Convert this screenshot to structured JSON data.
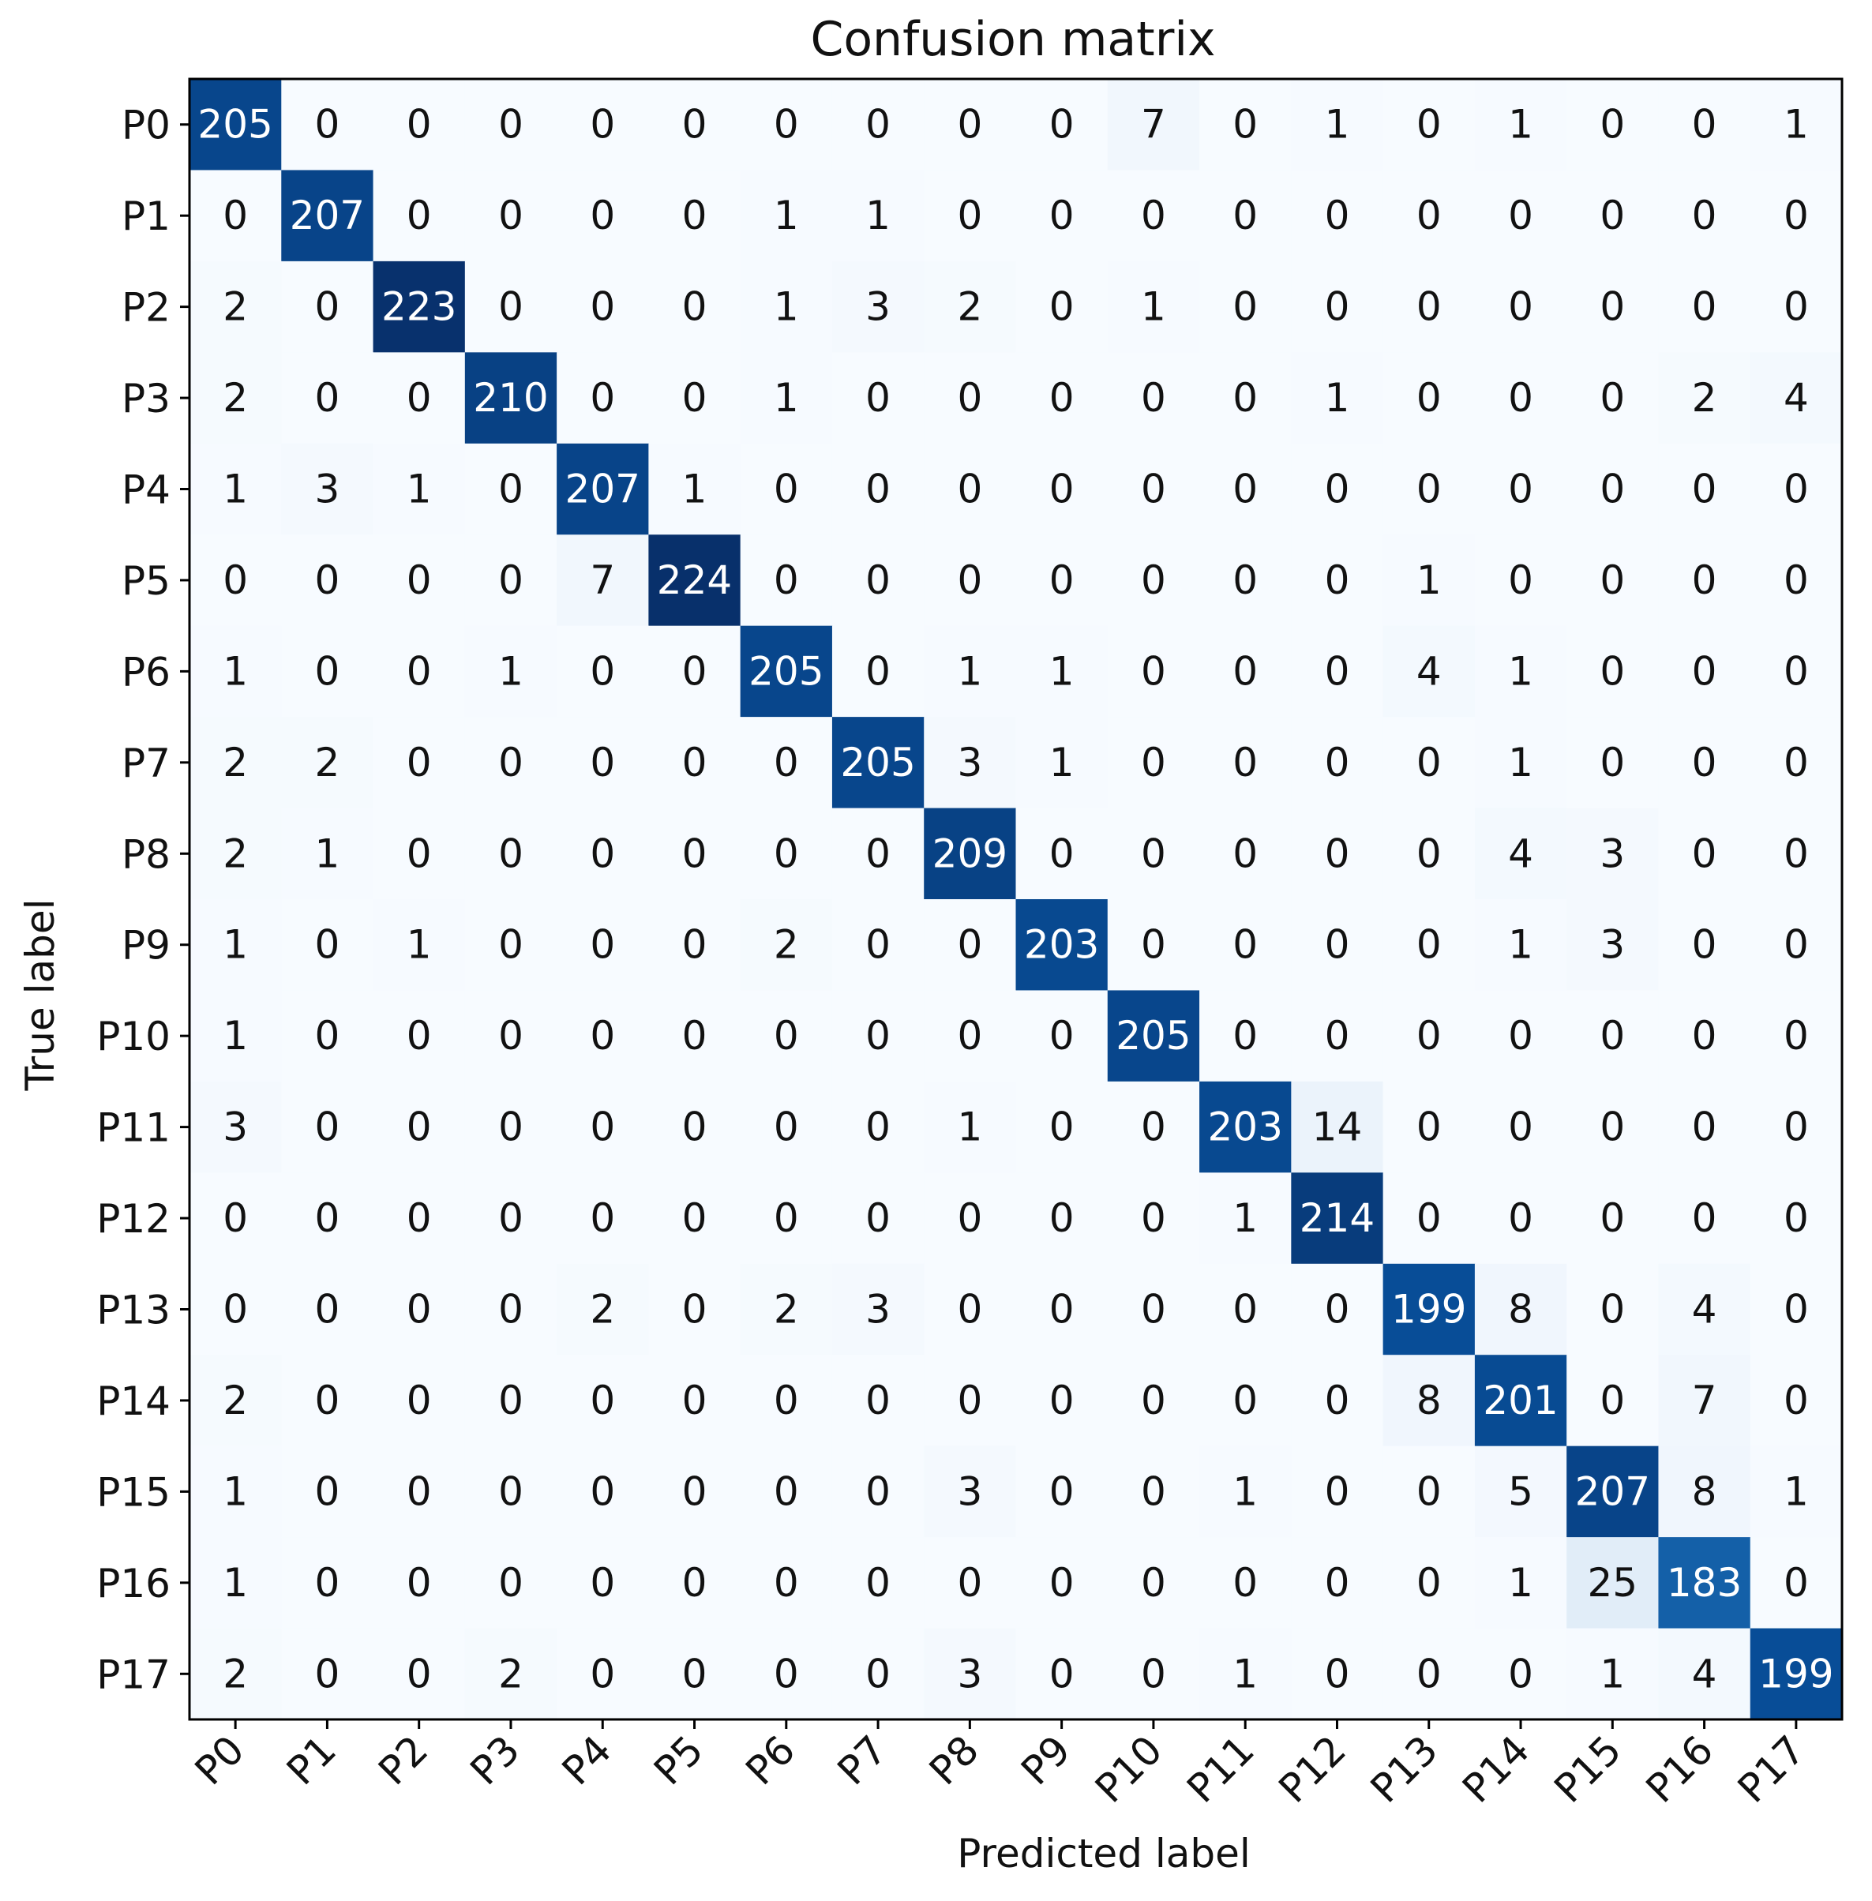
{
  "chart_data": {
    "type": "heatmap",
    "title": "Confusion matrix",
    "xlabel": "Predicted label",
    "ylabel": "True label",
    "x_categories": [
      "P0",
      "P1",
      "P2",
      "P3",
      "P4",
      "P5",
      "P6",
      "P7",
      "P8",
      "P9",
      "P10",
      "P11",
      "P12",
      "P13",
      "P14",
      "P15",
      "P16",
      "P17"
    ],
    "y_categories": [
      "P0",
      "P1",
      "P2",
      "P3",
      "P4",
      "P5",
      "P6",
      "P7",
      "P8",
      "P9",
      "P10",
      "P11",
      "P12",
      "P13",
      "P14",
      "P15",
      "P16",
      "P17"
    ],
    "colormap": "Blues",
    "colors": {
      "low": "#f7fbff",
      "high": "#08306b"
    },
    "values": [
      [
        205,
        0,
        0,
        0,
        0,
        0,
        0,
        0,
        0,
        0,
        7,
        0,
        1,
        0,
        1,
        0,
        0,
        1
      ],
      [
        0,
        207,
        0,
        0,
        0,
        0,
        1,
        1,
        0,
        0,
        0,
        0,
        0,
        0,
        0,
        0,
        0,
        0
      ],
      [
        2,
        0,
        223,
        0,
        0,
        0,
        1,
        3,
        2,
        0,
        1,
        0,
        0,
        0,
        0,
        0,
        0,
        0
      ],
      [
        2,
        0,
        0,
        210,
        0,
        0,
        1,
        0,
        0,
        0,
        0,
        0,
        1,
        0,
        0,
        0,
        2,
        4
      ],
      [
        1,
        3,
        1,
        0,
        207,
        1,
        0,
        0,
        0,
        0,
        0,
        0,
        0,
        0,
        0,
        0,
        0,
        0
      ],
      [
        0,
        0,
        0,
        0,
        7,
        224,
        0,
        0,
        0,
        0,
        0,
        0,
        0,
        1,
        0,
        0,
        0,
        0
      ],
      [
        1,
        0,
        0,
        1,
        0,
        0,
        205,
        0,
        1,
        1,
        0,
        0,
        0,
        4,
        1,
        0,
        0,
        0
      ],
      [
        2,
        2,
        0,
        0,
        0,
        0,
        0,
        205,
        3,
        1,
        0,
        0,
        0,
        0,
        1,
        0,
        0,
        0
      ],
      [
        2,
        1,
        0,
        0,
        0,
        0,
        0,
        0,
        209,
        0,
        0,
        0,
        0,
        0,
        4,
        3,
        0,
        0
      ],
      [
        1,
        0,
        1,
        0,
        0,
        0,
        2,
        0,
        0,
        203,
        0,
        0,
        0,
        0,
        1,
        3,
        0,
        0
      ],
      [
        1,
        0,
        0,
        0,
        0,
        0,
        0,
        0,
        0,
        0,
        205,
        0,
        0,
        0,
        0,
        0,
        0,
        0
      ],
      [
        3,
        0,
        0,
        0,
        0,
        0,
        0,
        0,
        1,
        0,
        0,
        203,
        14,
        0,
        0,
        0,
        0,
        0
      ],
      [
        0,
        0,
        0,
        0,
        0,
        0,
        0,
        0,
        0,
        0,
        0,
        1,
        214,
        0,
        0,
        0,
        0,
        0
      ],
      [
        0,
        0,
        0,
        0,
        2,
        0,
        2,
        3,
        0,
        0,
        0,
        0,
        0,
        199,
        8,
        0,
        4,
        0
      ],
      [
        2,
        0,
        0,
        0,
        0,
        0,
        0,
        0,
        0,
        0,
        0,
        0,
        0,
        8,
        201,
        0,
        7,
        0
      ],
      [
        1,
        0,
        0,
        0,
        0,
        0,
        0,
        0,
        3,
        0,
        0,
        1,
        0,
        0,
        5,
        207,
        8,
        1
      ],
      [
        1,
        0,
        0,
        0,
        0,
        0,
        0,
        0,
        0,
        0,
        0,
        0,
        0,
        0,
        1,
        25,
        183,
        0
      ],
      [
        2,
        0,
        0,
        2,
        0,
        0,
        0,
        0,
        3,
        0,
        0,
        1,
        0,
        0,
        0,
        1,
        4,
        199
      ]
    ]
  }
}
